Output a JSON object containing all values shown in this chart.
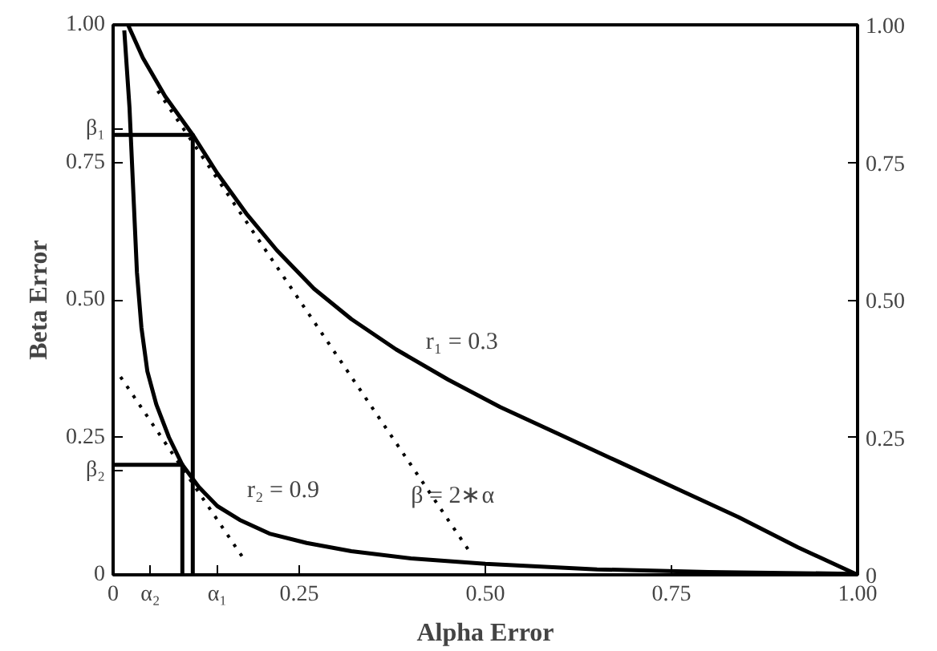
{
  "chart_data": {
    "type": "line",
    "xlabel": "Alpha Error",
    "ylabel": "Beta Error",
    "xlim": [
      0,
      1.0
    ],
    "ylim": [
      0,
      1.0
    ],
    "y2lim": [
      0,
      1.0
    ],
    "xticks": [
      0,
      {
        "value": 0.05,
        "label": "α₂"
      },
      {
        "value": 0.14,
        "label": "α₁"
      },
      {
        "value": 0.25,
        "label": "0.25"
      },
      {
        "value": 0.5,
        "label": "0.50"
      },
      {
        "value": 0.75,
        "label": "0.75"
      },
      {
        "value": 1.0,
        "label": "1.00"
      }
    ],
    "yticks": [
      0,
      {
        "value": 0.19,
        "label": "β₂"
      },
      {
        "value": 0.25,
        "label": "0.25"
      },
      {
        "value": 0.5,
        "label": "0.50"
      },
      {
        "value": 0.75,
        "label": "0.75"
      },
      {
        "value": 0.81,
        "label": "β₁"
      },
      {
        "value": 1.0,
        "label": "1.00"
      }
    ],
    "y2ticks": [
      0,
      {
        "value": 0.25,
        "label": "0.25"
      },
      {
        "value": 0.5,
        "label": "0.50"
      },
      {
        "value": 0.75,
        "label": "0.75"
      },
      {
        "value": 1.0,
        "label": "1.00"
      }
    ],
    "grid": false,
    "marker": "none",
    "series": [
      {
        "name": "r₁ = 0.3",
        "color": "#000000",
        "line_style": "solid",
        "x": [
          0.02,
          0.04,
          0.07,
          0.107,
          0.14,
          0.18,
          0.22,
          0.27,
          0.32,
          0.38,
          0.45,
          0.52,
          0.6,
          0.68,
          0.76,
          0.84,
          0.92,
          1.0
        ],
        "values": [
          1.0,
          0.94,
          0.87,
          0.8,
          0.73,
          0.655,
          0.59,
          0.52,
          0.465,
          0.41,
          0.355,
          0.305,
          0.255,
          0.205,
          0.155,
          0.105,
          0.05,
          0.0
        ]
      },
      {
        "name": "r₂ = 0.9",
        "color": "#000000",
        "line_style": "solid",
        "x": [
          0.015,
          0.022,
          0.027,
          0.032,
          0.038,
          0.046,
          0.058,
          0.075,
          0.093,
          0.115,
          0.14,
          0.17,
          0.21,
          0.26,
          0.32,
          0.4,
          0.5,
          0.65,
          0.8,
          0.99
        ],
        "values": [
          0.99,
          0.85,
          0.7,
          0.55,
          0.45,
          0.37,
          0.31,
          0.25,
          0.2,
          0.16,
          0.125,
          0.1,
          0.075,
          0.058,
          0.043,
          0.03,
          0.02,
          0.01,
          0.005,
          0.002
        ]
      },
      {
        "name": "β = 2∗α",
        "color": "#000000",
        "line_style": "dotted",
        "x": [
          0.06,
          0.48
        ],
        "values": [
          0.88,
          0.04
        ]
      },
      {
        "color": "#000000",
        "line_style": "dotted",
        "x": [
          0.01,
          0.175
        ],
        "values": [
          0.36,
          0.03
        ]
      },
      {
        "color": "#000000",
        "line_style": "solid",
        "x": [
          0,
          0.107,
          0.107
        ],
        "values": [
          0.8,
          0.8,
          0
        ]
      },
      {
        "color": "#000000",
        "line_style": "solid",
        "x": [
          0,
          0.093,
          0.093
        ],
        "values": [
          0.2,
          0.2,
          0
        ]
      }
    ]
  }
}
